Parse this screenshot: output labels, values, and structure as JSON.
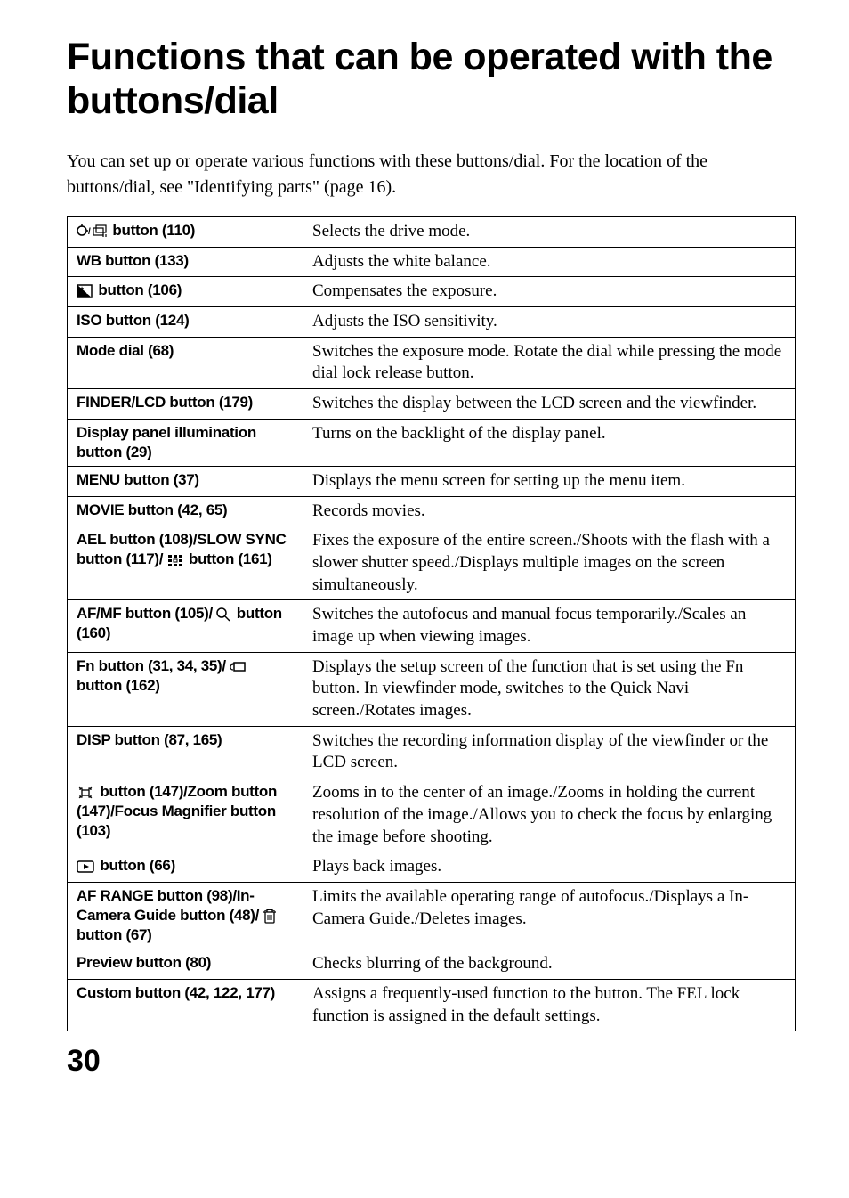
{
  "title": "Functions that can be operated with the buttons/dial",
  "intro": "You can set up or operate various functions with these buttons/dial.\nFor the location of the buttons/dial, see \"Identifying parts\" (page 16).",
  "pageNumber": "30",
  "table": {
    "rows": [
      {
        "icon": "drive-mode",
        "label": " button (110)",
        "description": "Selects the drive mode."
      },
      {
        "label": "WB button (133)",
        "description": "Adjusts the white balance."
      },
      {
        "icon": "exposure",
        "label": " button (106)",
        "description": "Compensates the exposure."
      },
      {
        "label": "ISO button (124)",
        "description": "Adjusts the ISO sensitivity."
      },
      {
        "label": "Mode dial (68)",
        "description": "Switches the exposure mode. Rotate the dial while pressing the mode dial lock release button."
      },
      {
        "label": "FINDER/LCD button (179)",
        "description": "Switches the display between the LCD screen and the viewfinder."
      },
      {
        "label": "Display panel illumination button (29)",
        "description": "Turns on the backlight of the display panel."
      },
      {
        "label": "MENU button (37)",
        "description": "Displays the menu screen for setting up the menu item."
      },
      {
        "label": "MOVIE button (42, 65)",
        "description": "Records movies."
      },
      {
        "labelParts": {
          "prefix": "AEL button (108)/SLOW SYNC button (117)/ ",
          "icon": "grid",
          "suffix": " button (161)"
        },
        "description": "Fixes the exposure of the entire screen./Shoots with the flash with a slower shutter speed./Displays multiple images on the screen simultaneously."
      },
      {
        "labelParts": {
          "prefix": "AF/MF button (105)/ ",
          "icon": "magnify",
          "suffix": " button (160)"
        },
        "description": "Switches the autofocus and manual focus temporarily./Scales an image up when viewing images."
      },
      {
        "labelParts": {
          "prefix": "Fn button (31, 34, 35)/ ",
          "icon": "rotate",
          "suffix": " button (162)"
        },
        "description": "Displays the setup screen of the function that is set using the Fn button. In viewfinder mode, switches to the Quick Navi screen./Rotates images."
      },
      {
        "label": "DISP button (87, 165)",
        "description": "Switches the recording information display of the viewfinder or the LCD screen."
      },
      {
        "labelParts": {
          "icon": "smart-zoom",
          "suffix": " button (147)/Zoom button (147)/Focus Magnifier button (103)"
        },
        "description": "Zooms in to the center of an image./Zooms in holding the current resolution of the image./Allows you to check the focus by enlarging the image before shooting."
      },
      {
        "labelParts": {
          "icon": "playback",
          "suffix": " button (66)"
        },
        "description": "Plays back images."
      },
      {
        "labelParts": {
          "prefix": "AF RANGE button (98)/In-Camera Guide button (48)/ ",
          "icon": "trash",
          "suffix": " button (67)"
        },
        "description": "Limits the available operating range of autofocus./Displays a In-Camera Guide./Deletes images."
      },
      {
        "label": "Preview button (80)",
        "description": "Checks blurring of the background."
      },
      {
        "label": "Custom button (42, 122, 177)",
        "description": "Assigns a frequently-used function to the button. The FEL lock function is assigned in the default settings."
      }
    ]
  },
  "colors": {
    "text": "#000000",
    "background": "#ffffff",
    "border": "#000000"
  }
}
